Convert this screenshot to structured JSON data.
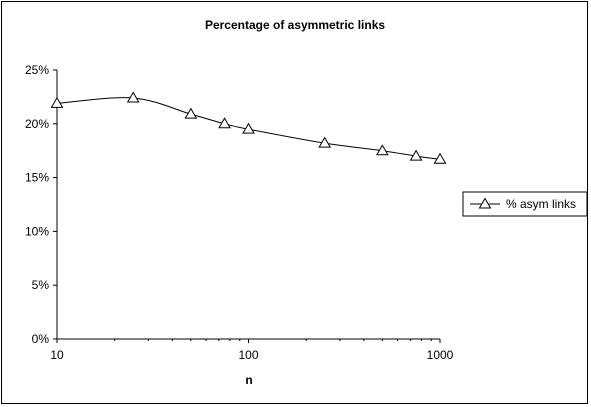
{
  "chart_data": {
    "type": "line",
    "title": "Percentage of asymmetric links",
    "xlabel": "n",
    "ylabel": "",
    "x_scale": "log",
    "xlim": [
      10,
      1000
    ],
    "ylim": [
      0,
      0.25
    ],
    "x_ticks": [
      10,
      100,
      1000
    ],
    "x_tick_labels": [
      "10",
      "100",
      "1000"
    ],
    "y_ticks": [
      0,
      0.05,
      0.1,
      0.15,
      0.2,
      0.25
    ],
    "y_tick_labels": [
      "0%",
      "5%",
      "10%",
      "15%",
      "20%",
      "25%"
    ],
    "grid": false,
    "legend_position": "right",
    "series": [
      {
        "name": "% asym links",
        "marker": "triangle",
        "smooth": true,
        "color": "#000000",
        "x": [
          10,
          25,
          50,
          75,
          100,
          250,
          500,
          750,
          1000
        ],
        "y": [
          0.219,
          0.224,
          0.209,
          0.2,
          0.195,
          0.182,
          0.175,
          0.17,
          0.167
        ]
      }
    ]
  }
}
